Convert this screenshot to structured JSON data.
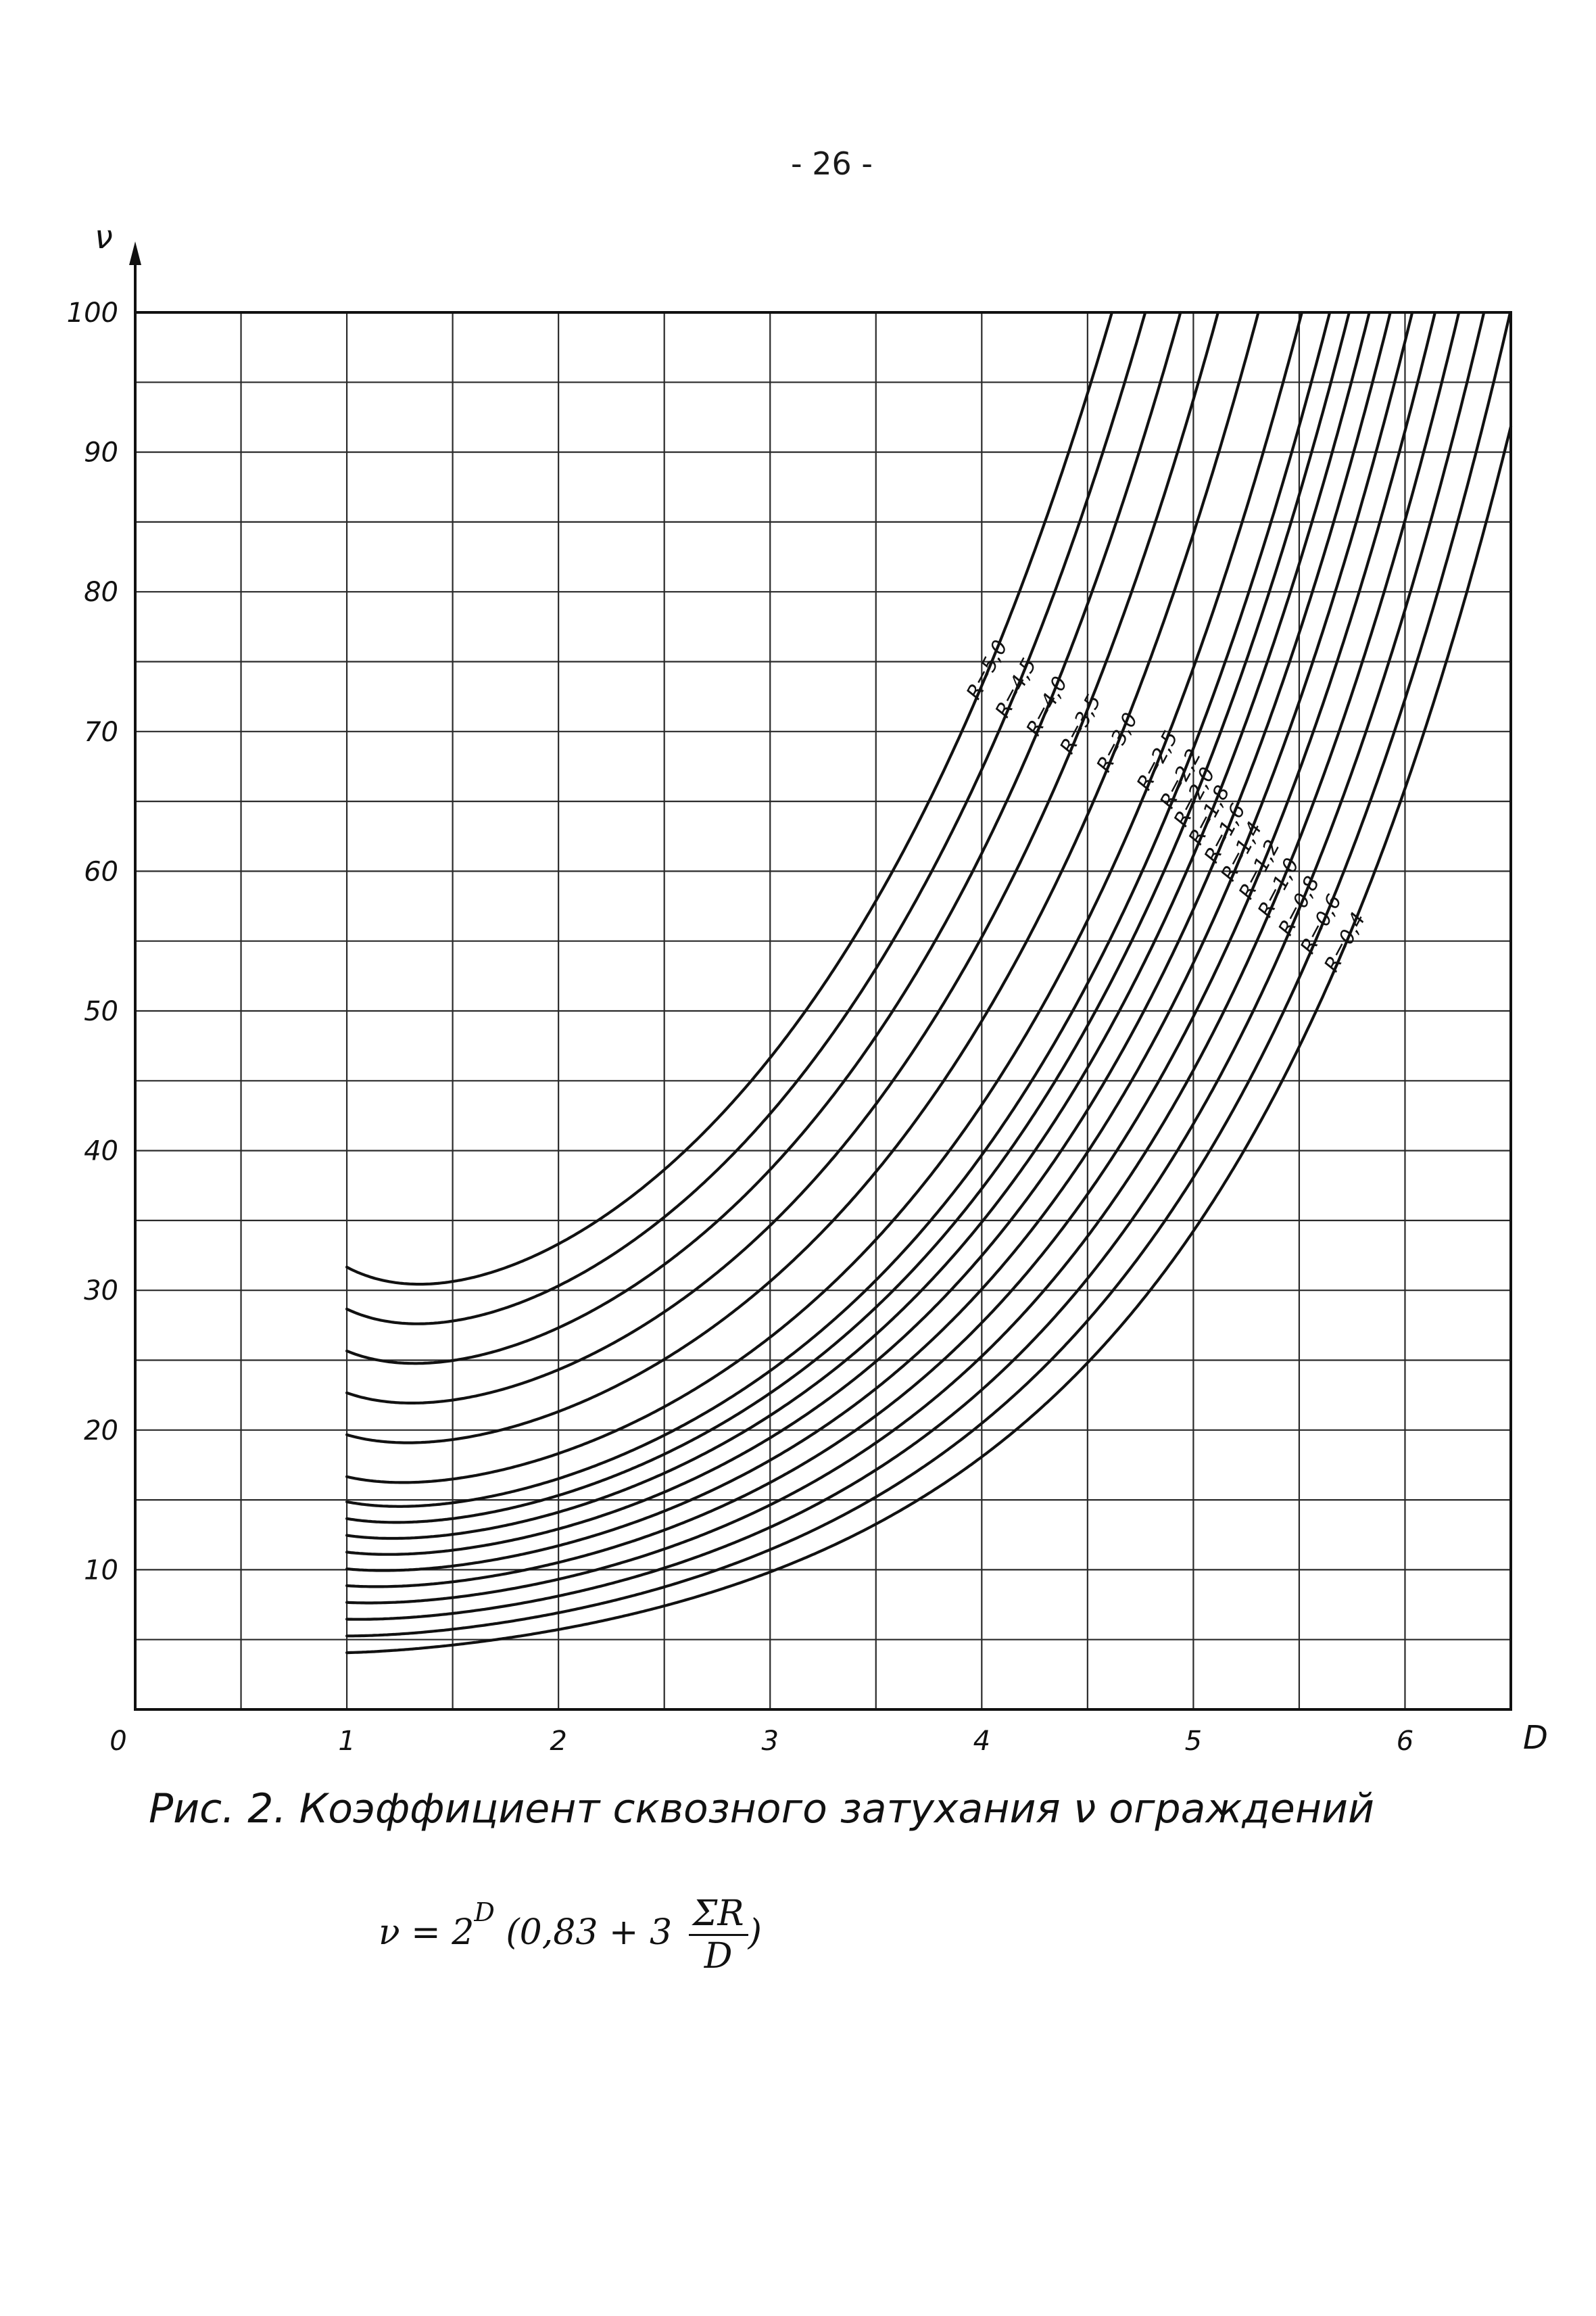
{
  "page_number": "- 26 -",
  "caption": "Рис. 2. Коэффициент сквозного затухания ν ограждений",
  "formula": {
    "lhs": "ν = 2",
    "exponent": "D",
    "paren_open": "(0,83 + 3",
    "numerator": "ΣR",
    "denominator": "D",
    "paren_close": ")"
  },
  "chart_data": {
    "type": "line",
    "xlabel": "D",
    "ylabel": "ν",
    "xlim": [
      0,
      6.5
    ],
    "ylim": [
      0,
      100
    ],
    "x_ticks": [
      "0",
      "1",
      "2",
      "3",
      "4",
      "5",
      "6"
    ],
    "y_ticks": [
      "10",
      "20",
      "30",
      "40",
      "50",
      "60",
      "70",
      "80",
      "90",
      "100"
    ],
    "grid": true,
    "formula_expression": "v = 2^D * (0.83 + 3*R/D)",
    "series": [
      {
        "name": "R=5,0",
        "R": 5.0
      },
      {
        "name": "R=4,5",
        "R": 4.5
      },
      {
        "name": "R=4,0",
        "R": 4.0
      },
      {
        "name": "R=3,5",
        "R": 3.5
      },
      {
        "name": "R=3,0",
        "R": 3.0
      },
      {
        "name": "R=2,5",
        "R": 2.5
      },
      {
        "name": "R=2,2",
        "R": 2.2
      },
      {
        "name": "R=2,0",
        "R": 2.0
      },
      {
        "name": "R=1,8",
        "R": 1.8
      },
      {
        "name": "R=1,6",
        "R": 1.6
      },
      {
        "name": "R=1,4",
        "R": 1.4
      },
      {
        "name": "R=1,2",
        "R": 1.2
      },
      {
        "name": "R=1,0",
        "R": 1.0
      },
      {
        "name": "R=0,8",
        "R": 0.8
      },
      {
        "name": "R=0,6",
        "R": 0.6
      },
      {
        "name": "R=0,4",
        "R": 0.4
      }
    ]
  }
}
